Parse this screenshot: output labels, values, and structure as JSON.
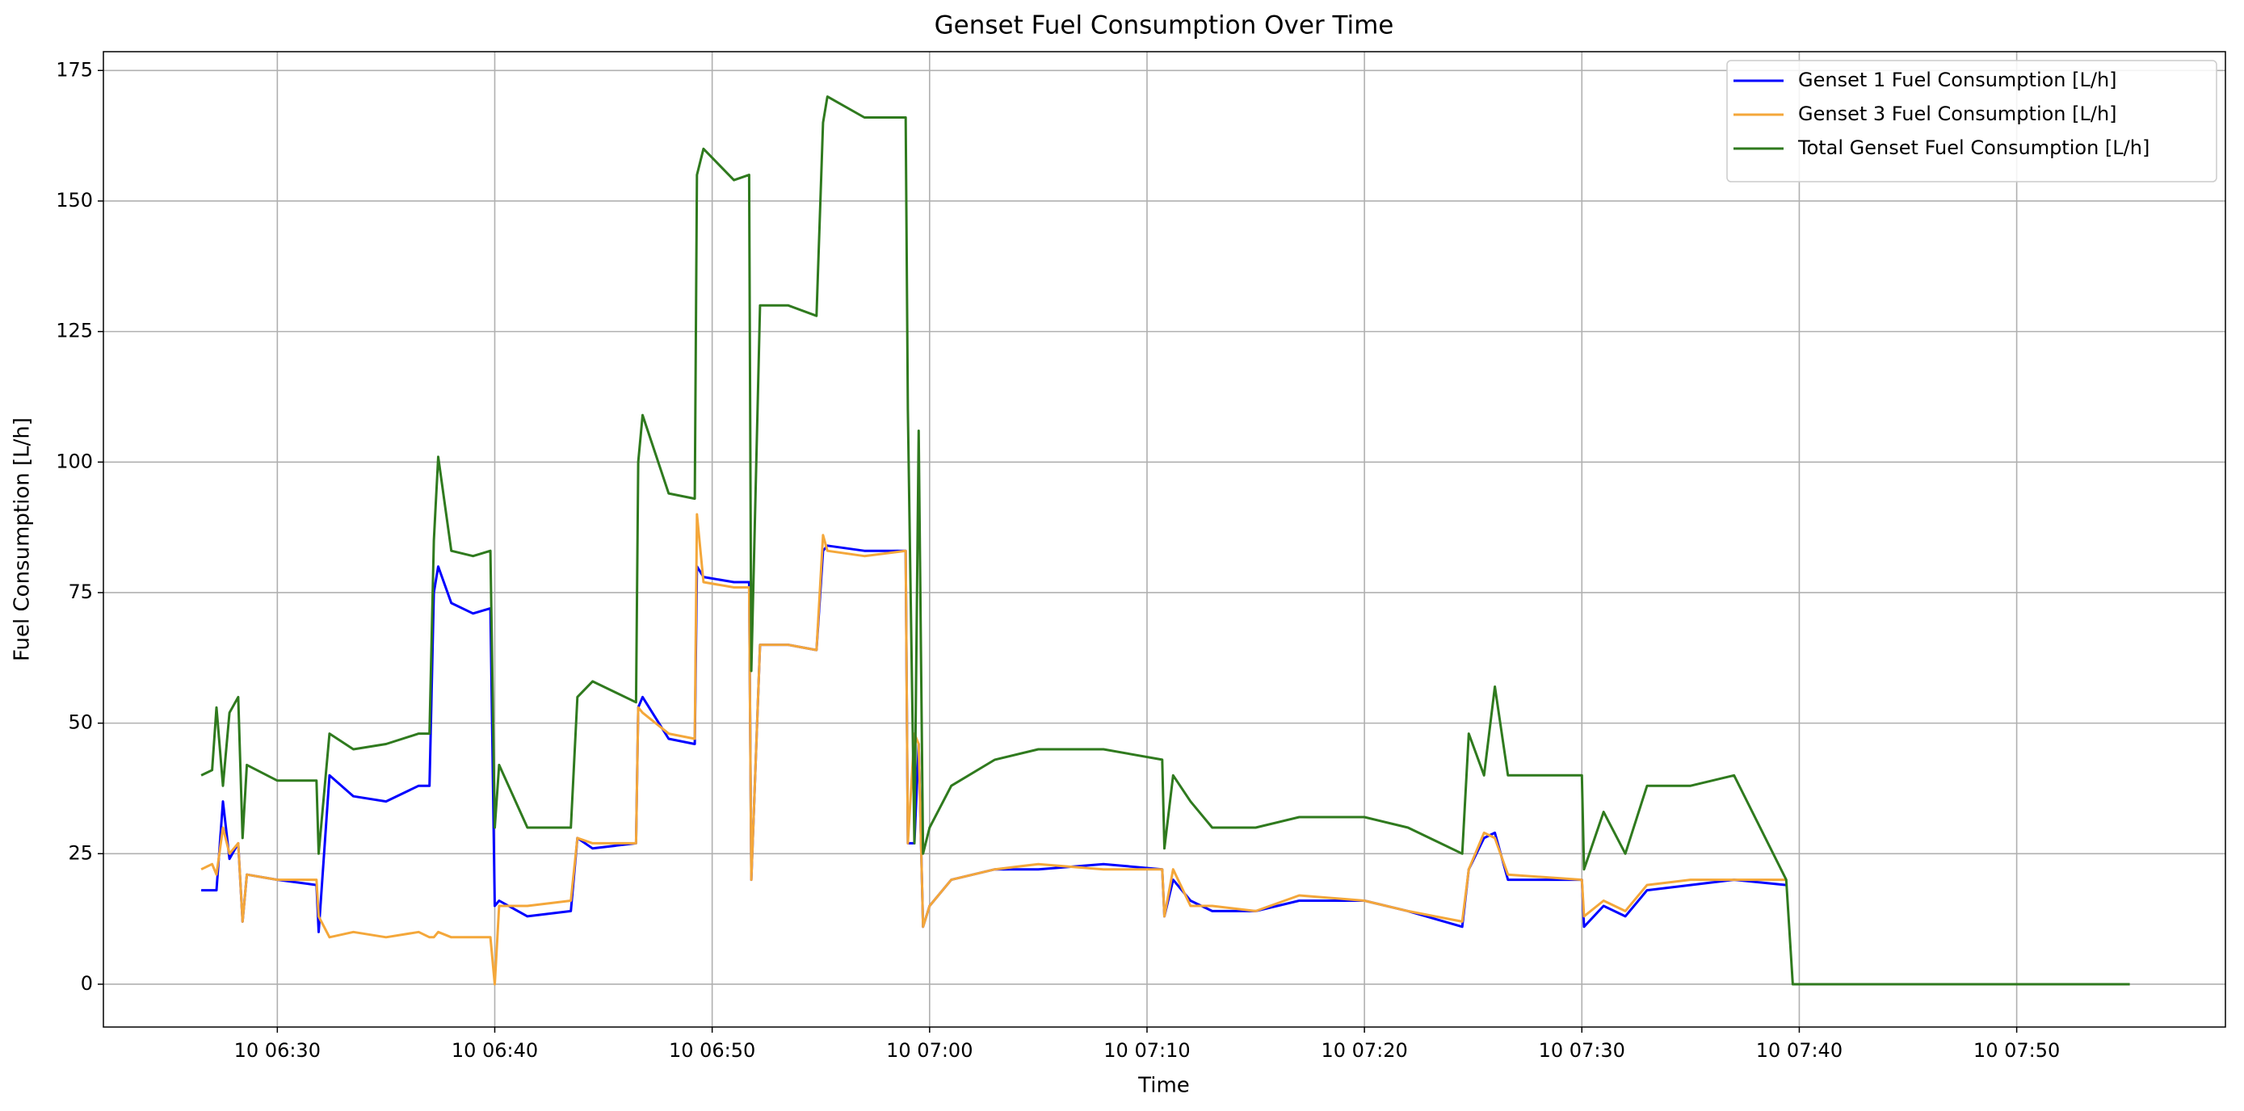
{
  "chart_data": {
    "type": "line",
    "title": "Genset Fuel Consumption Over Time",
    "x_label": "Time",
    "y_label": "Fuel Consumption [L/h]",
    "x": [
      386.5,
      387.0,
      387.2,
      387.5,
      387.8,
      388.2,
      388.4,
      388.6,
      390.0,
      391.8,
      391.9,
      392.4,
      393.5,
      395.0,
      396.5,
      397.0,
      397.2,
      397.4,
      398.0,
      399.0,
      399.8,
      400.0,
      400.2,
      401.5,
      403.5,
      403.8,
      404.5,
      406.5,
      406.6,
      406.8,
      408.0,
      409.2,
      409.3,
      409.6,
      411.0,
      411.7,
      411.8,
      412.2,
      413.5,
      414.8,
      415.1,
      415.3,
      417.0,
      418.9,
      419.0,
      419.3,
      419.5,
      419.7,
      420.0,
      421.0,
      423.0,
      425.0,
      428.0,
      430.7,
      430.8,
      431.2,
      432.0,
      433.0,
      435.0,
      437.0,
      440.0,
      442.0,
      444.5,
      444.8,
      445.5,
      446.0,
      446.6,
      450.0,
      450.1,
      451.0,
      452.0,
      453.0,
      455.0,
      457.0,
      459.4,
      459.7,
      475.2
    ],
    "series": [
      {
        "name": "Genset 1 Fuel Consumption [L/h]",
        "color": "#0000ff",
        "values": [
          18,
          18,
          18,
          35,
          24,
          27,
          12,
          21,
          20,
          19,
          10,
          40,
          36,
          35,
          38,
          38,
          75,
          80,
          73,
          71,
          72,
          15,
          16,
          13,
          14,
          28,
          26,
          27,
          53,
          55,
          47,
          46,
          80,
          78,
          77,
          77,
          20,
          65,
          65,
          64,
          83,
          84,
          83,
          83,
          27,
          27,
          46,
          11,
          15,
          20,
          22,
          22,
          23,
          22,
          13,
          20,
          16,
          14,
          14,
          16,
          16,
          14,
          11,
          22,
          28,
          29,
          20,
          20,
          11,
          15,
          13,
          18,
          19,
          20,
          19,
          null,
          null
        ]
      },
      {
        "name": "Genset 3 Fuel Consumption [L/h]",
        "color": "#f4a73a",
        "values": [
          22,
          23,
          21,
          30,
          25,
          27,
          12,
          21,
          20,
          20,
          13,
          9,
          10,
          9,
          10,
          9,
          9,
          10,
          9,
          9,
          9,
          0,
          15,
          15,
          16,
          28,
          27,
          27,
          53,
          52,
          48,
          47,
          90,
          77,
          76,
          76,
          20,
          65,
          65,
          64,
          86,
          83,
          82,
          83,
          27,
          48,
          46,
          11,
          15,
          20,
          22,
          23,
          22,
          22,
          13,
          22,
          15,
          15,
          14,
          17,
          16,
          14,
          12,
          22,
          29,
          28,
          21,
          20,
          13,
          16,
          14,
          19,
          20,
          20,
          20,
          null,
          null
        ]
      },
      {
        "name": "Total Genset Fuel Consumption [L/h]",
        "color": "#2f7a1e",
        "values": [
          40,
          41,
          53,
          38,
          52,
          55,
          28,
          42,
          39,
          39,
          25,
          48,
          45,
          46,
          48,
          48,
          85,
          101,
          83,
          82,
          83,
          30,
          42,
          30,
          30,
          55,
          58,
          54,
          100,
          109,
          94,
          93,
          155,
          160,
          154,
          155,
          60,
          130,
          130,
          128,
          165,
          170,
          166,
          166,
          110,
          27,
          106,
          25,
          30,
          38,
          43,
          45,
          45,
          43,
          26,
          40,
          35,
          30,
          30,
          32,
          32,
          30,
          25,
          48,
          40,
          57,
          40,
          40,
          22,
          33,
          25,
          38,
          38,
          40,
          20,
          0,
          0
        ]
      }
    ],
    "xlim": [
      382.0,
      479.6
    ],
    "ylim": [
      -8.2,
      178.6
    ],
    "xticks": [
      {
        "value": 390,
        "label": "10 06:30"
      },
      {
        "value": 400,
        "label": "10 06:40"
      },
      {
        "value": 410,
        "label": "10 06:50"
      },
      {
        "value": 420,
        "label": "10 07:00"
      },
      {
        "value": 430,
        "label": "10 07:10"
      },
      {
        "value": 440,
        "label": "10 07:20"
      },
      {
        "value": 450,
        "label": "10 07:30"
      },
      {
        "value": 460,
        "label": "10 07:40"
      },
      {
        "value": 470,
        "label": "10 07:50"
      }
    ],
    "yticks": [
      0,
      25,
      50,
      75,
      100,
      125,
      150,
      175
    ],
    "grid": true,
    "legend": "upper right"
  }
}
